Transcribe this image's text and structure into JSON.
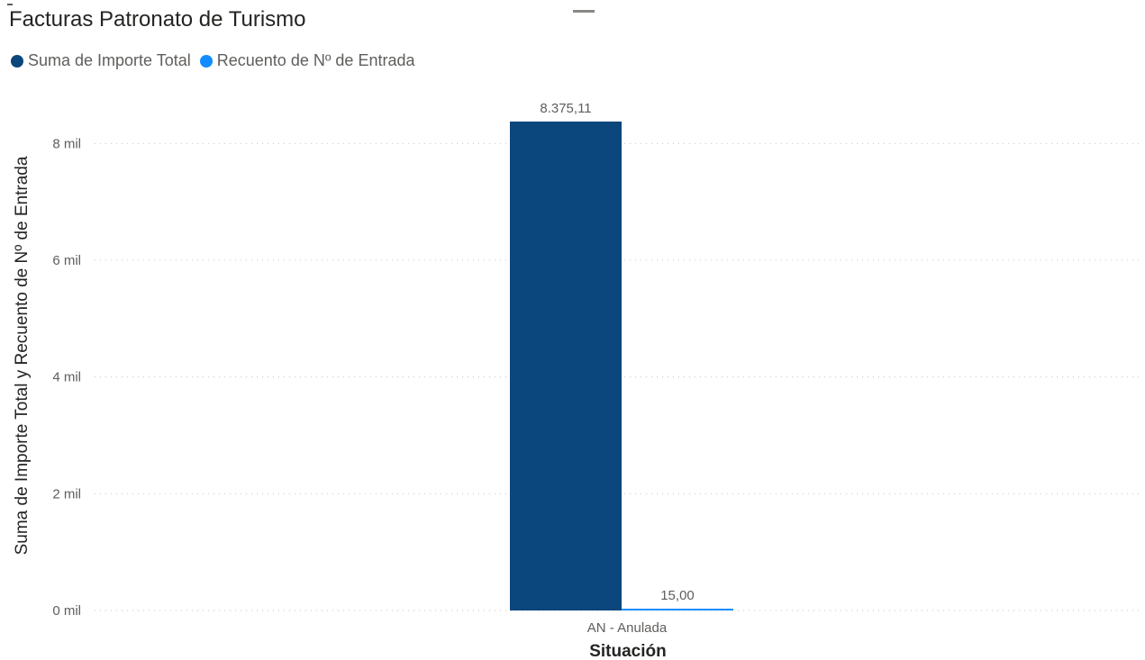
{
  "chart_data": {
    "type": "bar",
    "title": "Facturas Patronato de Turismo",
    "categories": [
      "AN - Anulada"
    ],
    "series": [
      {
        "name": "Suma de Importe Total",
        "values": [
          8375.11
        ],
        "label": "8.375,11",
        "color": "#0b467c"
      },
      {
        "name": "Recuento de Nº de Entrada",
        "values": [
          15
        ],
        "label": "15,00",
        "color": "#118dff"
      }
    ],
    "xlabel": "Situación",
    "ylabel": "Suma de Importe Total y Recuento de Nº de Entrada",
    "ylim": [
      0,
      8375.11
    ],
    "yticks": [
      {
        "value": 0,
        "label": "0 mil"
      },
      {
        "value": 2000,
        "label": "2 mil"
      },
      {
        "value": 4000,
        "label": "4 mil"
      },
      {
        "value": 6000,
        "label": "6 mil"
      },
      {
        "value": 8000,
        "label": "8 mil"
      }
    ],
    "grid": true,
    "legend_position": "top-left"
  }
}
